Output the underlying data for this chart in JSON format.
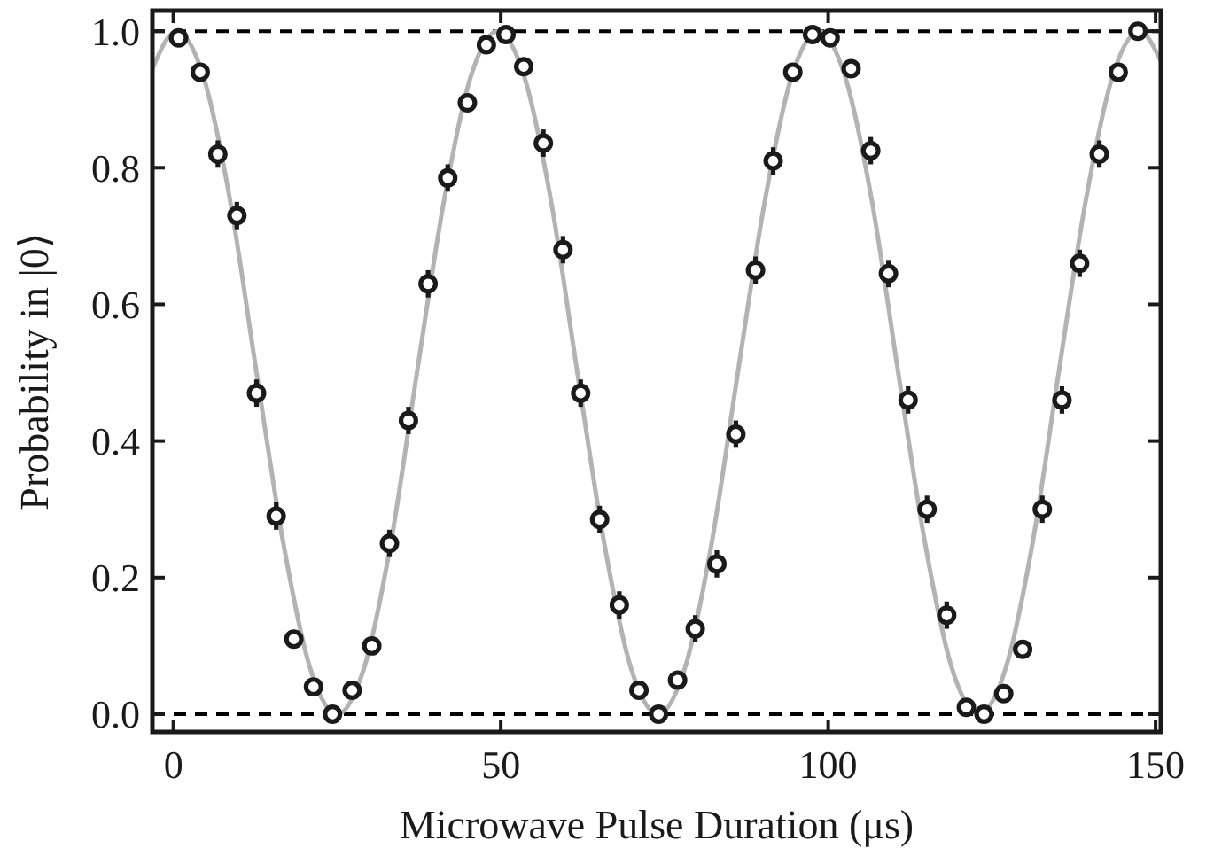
{
  "chart_data": {
    "type": "scatter",
    "xlabel": "Microwave Pulse Duration (μs)",
    "ylabel": "Probability in |0⟩",
    "xlim": [
      -3.2,
      150.8
    ],
    "ylim": [
      -0.026,
      1.03
    ],
    "xticks": [
      0,
      50,
      100,
      150
    ],
    "yticks": [
      {
        "value": 0,
        "label": "0.0"
      },
      {
        "value": 0.2,
        "label": "0.2"
      },
      {
        "value": 0.4,
        "label": "0.4"
      },
      {
        "value": 0.6,
        "label": "0.6"
      },
      {
        "value": 0.8,
        "label": "0.8"
      },
      {
        "value": 1,
        "label": "1.0"
      }
    ],
    "grid": false,
    "ref_lines": [
      {
        "axis": "y",
        "value": 0,
        "color": "#000000",
        "line_style": "dashed"
      },
      {
        "axis": "y",
        "value": 1,
        "color": "#000000",
        "line_style": "dashed"
      }
    ],
    "series": [
      {
        "type": "line",
        "color": "#b3b3b3",
        "line_style": "solid",
        "marker": "none",
        "x": [
          -3.2,
          0.5,
          4.6,
          8.7,
          12.7,
          16.8,
          20.9,
          25.0,
          29.1,
          33.2,
          37.2,
          41.3,
          45.4,
          49.5,
          53.6,
          57.7,
          61.7,
          65.8,
          69.9,
          74.0,
          78.1,
          82.2,
          86.2,
          90.3,
          94.4,
          98.5,
          102.6,
          106.7,
          110.7,
          114.8,
          118.9,
          123.0,
          127.1,
          131.2,
          135.2,
          139.3,
          143.4,
          147.5,
          150.8
        ],
        "values": [
          0.945,
          1,
          0.933,
          0.75,
          0.5,
          0.25,
          0.067,
          0,
          0.067,
          0.25,
          0.5,
          0.75,
          0.933,
          1,
          0.933,
          0.75,
          0.5,
          0.25,
          0.067,
          0,
          0.067,
          0.25,
          0.5,
          0.75,
          0.933,
          1,
          0.933,
          0.75,
          0.5,
          0.25,
          0.067,
          0,
          0.067,
          0.25,
          0.5,
          0.75,
          0.933,
          1,
          0.956
        ]
      },
      {
        "color": "#1a1a1a",
        "marker": "circle",
        "x": [
          0.8,
          4.1,
          6.8,
          9.7,
          12.7,
          15.7,
          18.4,
          21.4,
          24.3,
          27.3,
          30.3,
          33.0,
          35.9,
          38.9,
          41.9,
          44.9,
          47.8,
          50.8,
          53.5,
          56.5,
          59.5,
          62.2,
          65.1,
          68.1,
          71.1,
          74.1,
          77.0,
          79.7,
          83.0,
          85.9,
          88.9,
          91.6,
          94.6,
          97.6,
          100.3,
          103.5,
          106.5,
          109.2,
          112.2,
          115.1,
          118.1,
          121.1,
          123.8,
          126.8,
          129.7,
          132.7,
          135.7,
          138.4,
          141.4,
          144.3,
          147.3
        ],
        "values": [
          0.99,
          0.94,
          0.82,
          0.73,
          0.47,
          0.29,
          0.11,
          0.04,
          0.0,
          0.035,
          0.1,
          0.25,
          0.43,
          0.63,
          0.785,
          0.895,
          0.98,
          0.995,
          0.948,
          0.836,
          0.68,
          0.47,
          0.285,
          0.16,
          0.035,
          0.0,
          0.05,
          0.125,
          0.22,
          0.41,
          0.65,
          0.81,
          0.94,
          0.995,
          0.99,
          0.945,
          0.825,
          0.645,
          0.46,
          0.3,
          0.145,
          0.01,
          0.0,
          0.03,
          0.095,
          0.3,
          0.46,
          0.66,
          0.82,
          0.94,
          1.0
        ],
        "errors": [
          null,
          null,
          0.02,
          0.02,
          0.02,
          0.02,
          null,
          null,
          null,
          null,
          null,
          0.02,
          0.02,
          0.02,
          0.02,
          null,
          null,
          null,
          null,
          0.02,
          0.02,
          0.02,
          0.02,
          0.02,
          null,
          null,
          null,
          0.02,
          0.02,
          0.02,
          0.02,
          0.02,
          null,
          null,
          null,
          null,
          0.02,
          0.02,
          0.02,
          0.02,
          0.02,
          null,
          null,
          null,
          null,
          0.02,
          0.02,
          0.02,
          0.02,
          null,
          null
        ]
      }
    ]
  }
}
